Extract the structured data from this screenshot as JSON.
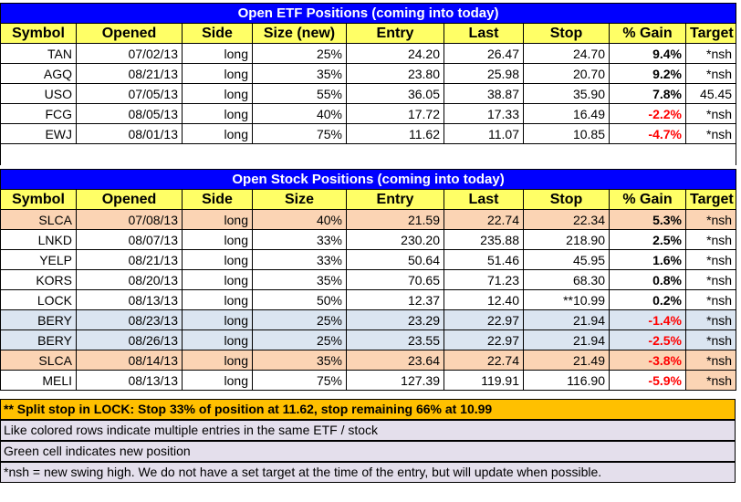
{
  "etf": {
    "title": "Open ETF Positions (coming into today)",
    "headers": [
      "Symbol",
      "Opened",
      "Side",
      "Size (new)",
      "Entry",
      "Last",
      "Stop",
      "% Gain",
      "Target"
    ],
    "rows": [
      {
        "symbol": "TAN",
        "opened": "07/02/13",
        "side": "long",
        "size": "25%",
        "entry": "24.20",
        "last": "26.47",
        "stop": "24.70",
        "gain": "9.4%",
        "target": "*nsh",
        "neg": false,
        "style": ""
      },
      {
        "symbol": "AGQ",
        "opened": "08/21/13",
        "side": "long",
        "size": "35%",
        "entry": "23.80",
        "last": "25.98",
        "stop": "20.70",
        "gain": "9.2%",
        "target": "*nsh",
        "neg": false,
        "style": ""
      },
      {
        "symbol": "USO",
        "opened": "07/05/13",
        "side": "long",
        "size": "55%",
        "entry": "36.05",
        "last": "38.87",
        "stop": "35.90",
        "gain": "7.8%",
        "target": "45.45",
        "neg": false,
        "style": ""
      },
      {
        "symbol": "FCG",
        "opened": "08/05/13",
        "side": "long",
        "size": "40%",
        "entry": "17.72",
        "last": "17.33",
        "stop": "16.49",
        "gain": "-2.2%",
        "target": "*nsh",
        "neg": true,
        "style": ""
      },
      {
        "symbol": "EWJ",
        "opened": "08/01/13",
        "side": "long",
        "size": "75%",
        "entry": "11.62",
        "last": "11.07",
        "stop": "10.85",
        "gain": "-4.7%",
        "target": "*nsh",
        "neg": true,
        "style": ""
      }
    ]
  },
  "stock": {
    "title": "Open Stock Positions (coming into today)",
    "headers": [
      "Symbol",
      "Opened",
      "Side",
      "Size",
      "Entry",
      "Last",
      "Stop",
      "% Gain",
      "Target"
    ],
    "rows": [
      {
        "symbol": "SLCA",
        "opened": "07/08/13",
        "side": "long",
        "size": "40%",
        "entry": "21.59",
        "last": "22.74",
        "stop": "22.34",
        "gain": "5.3%",
        "target": "*nsh",
        "neg": false,
        "style": "peach"
      },
      {
        "symbol": "LNKD",
        "opened": "08/07/13",
        "side": "long",
        "size": "33%",
        "entry": "230.20",
        "last": "235.88",
        "stop": "218.90",
        "gain": "2.5%",
        "target": "*nsh",
        "neg": false,
        "style": ""
      },
      {
        "symbol": "YELP",
        "opened": "08/21/13",
        "side": "long",
        "size": "33%",
        "entry": "50.64",
        "last": "51.46",
        "stop": "45.95",
        "gain": "1.6%",
        "target": "*nsh",
        "neg": false,
        "style": ""
      },
      {
        "symbol": "KORS",
        "opened": "08/20/13",
        "side": "long",
        "size": "35%",
        "entry": "70.65",
        "last": "71.23",
        "stop": "68.30",
        "gain": "0.8%",
        "target": "*nsh",
        "neg": false,
        "style": ""
      },
      {
        "symbol": "LOCK",
        "opened": "08/13/13",
        "side": "long",
        "size": "50%",
        "entry": "12.37",
        "last": "12.40",
        "stop": "**10.99",
        "gain": "0.2%",
        "target": "*nsh",
        "neg": false,
        "style": ""
      },
      {
        "symbol": "BERY",
        "opened": "08/23/13",
        "side": "long",
        "size": "25%",
        "entry": "23.29",
        "last": "22.97",
        "stop": "21.94",
        "gain": "-1.4%",
        "target": "*nsh",
        "neg": true,
        "style": "blue"
      },
      {
        "symbol": "BERY",
        "opened": "08/26/13",
        "side": "long",
        "size": "25%",
        "entry": "23.55",
        "last": "22.97",
        "stop": "21.94",
        "gain": "-2.5%",
        "target": "*nsh",
        "neg": true,
        "style": "blue"
      },
      {
        "symbol": "SLCA",
        "opened": "08/14/13",
        "side": "long",
        "size": "35%",
        "entry": "23.64",
        "last": "22.74",
        "stop": "21.49",
        "gain": "-3.8%",
        "target": "*nsh",
        "neg": true,
        "style": "peach"
      },
      {
        "symbol": "MELI",
        "opened": "08/13/13",
        "side": "long",
        "size": "75%",
        "entry": "127.39",
        "last": "119.91",
        "stop": "116.90",
        "gain": "-5.9%",
        "target": "*nsh",
        "neg": true,
        "style": "target-peach"
      }
    ]
  },
  "notes": {
    "split_stop": "** Split stop in LOCK:  Stop 33% of position at 11.62, stop remaining 66% at 10.99",
    "colored_rows": "Like colored rows indicate multiple entries in the same ETF / stock",
    "green_cell": "Green cell indicates new position",
    "nsh": "*nsh = new swing high.  We do not have a set target at the time of the entry, but will update when possible."
  }
}
